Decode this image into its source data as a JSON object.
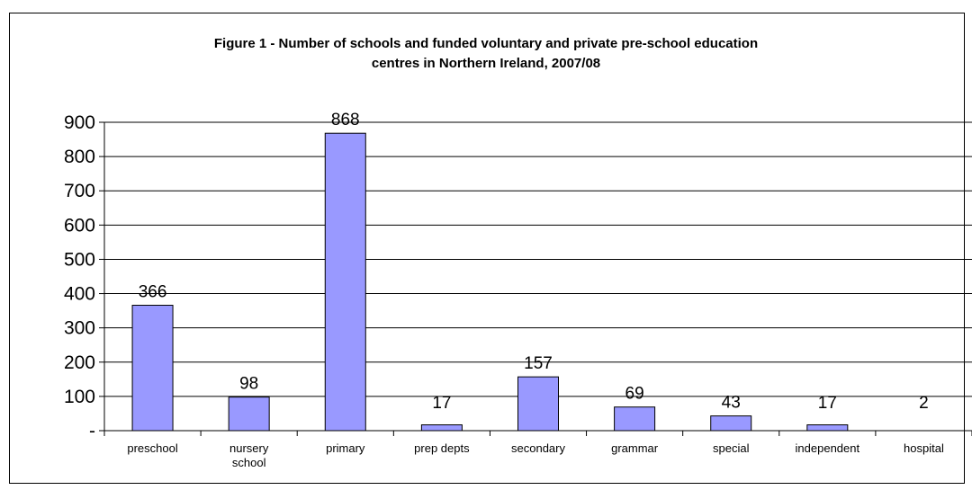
{
  "chart_data": {
    "type": "bar",
    "title_lines": [
      "Figure 1 - Number of schools and funded voluntary and private pre-school education",
      "centres in Northern Ireland, 2007/08"
    ],
    "categories": [
      [
        "preschool"
      ],
      [
        "nursery",
        "school"
      ],
      [
        "primary"
      ],
      [
        "prep depts"
      ],
      [
        "secondary"
      ],
      [
        "grammar"
      ],
      [
        "special"
      ],
      [
        "independent"
      ],
      [
        "hospital"
      ]
    ],
    "values": [
      366,
      98,
      868,
      17,
      157,
      69,
      43,
      17,
      2
    ],
    "data_labels": [
      "366",
      "98",
      "868",
      "17",
      "157",
      "69",
      "43",
      "17",
      "2"
    ],
    "yticks": [
      0,
      100,
      200,
      300,
      400,
      500,
      600,
      700,
      800,
      900
    ],
    "ytick_labels": [
      "-",
      "100",
      "200",
      "300",
      "400",
      "500",
      "600",
      "700",
      "800",
      "900"
    ],
    "ylim": [
      0,
      900
    ],
    "grid": true,
    "bar_color": "#9999FF",
    "bar_edge_color": "#000000"
  }
}
